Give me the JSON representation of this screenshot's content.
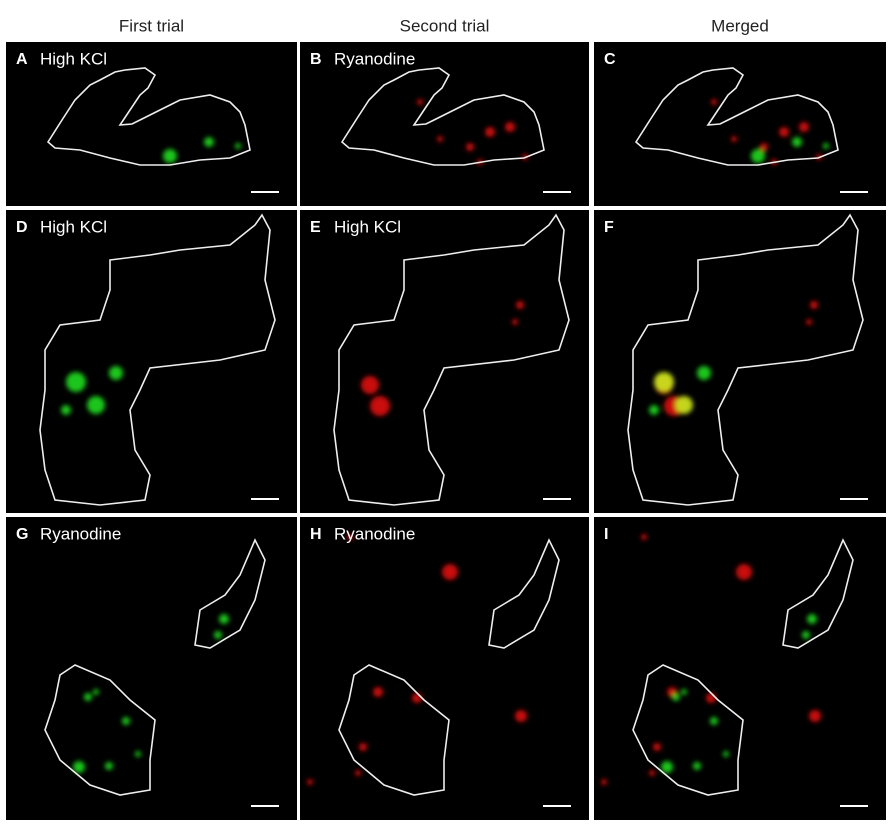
{
  "columns": [
    "First trial",
    "Second trial",
    "Merged"
  ],
  "panels": [
    {
      "letter": "A",
      "label": "High KCl"
    },
    {
      "letter": "B",
      "label": "Ryanodine"
    },
    {
      "letter": "C"
    },
    {
      "letter": "D",
      "label": "High KCl"
    },
    {
      "letter": "E",
      "label": "High KCl"
    },
    {
      "letter": "F"
    },
    {
      "letter": "G",
      "label": "Ryanodine"
    },
    {
      "letter": "H",
      "label": "Ryanodine"
    },
    {
      "letter": "I"
    }
  ]
}
